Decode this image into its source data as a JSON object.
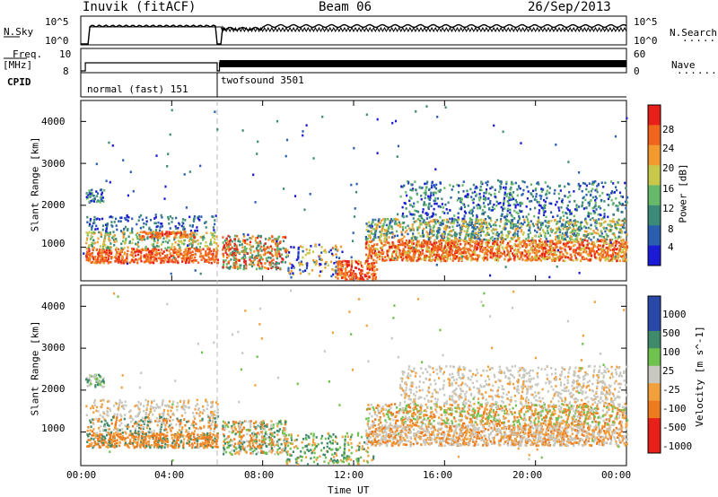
{
  "header": {
    "title_left": "Inuvik (fitACF)",
    "title_center": "Beam 06",
    "title_right": "26/Sep/2013"
  },
  "side_labels": {
    "nsky": "N.Sky",
    "freq_top": "Freq.",
    "freq_unit": "[MHz]",
    "cpid": "CPID",
    "nsearch": "N.Search",
    "nave": "Nave",
    "dots": "......."
  },
  "small_panels": {
    "nsky_ticks": [
      "10^5",
      "10^0"
    ],
    "nsearch_ticks": [
      "10^5",
      "10^0"
    ],
    "freq_ticks": [
      "10",
      "8"
    ],
    "nave_ticks": [
      "60",
      "0"
    ]
  },
  "cpid_segments": [
    {
      "label": "normal (fast) 151",
      "start_hour": 0.0,
      "end_hour": 6.0
    },
    {
      "label": "twofsound 3501",
      "start_hour": 6.0,
      "end_hour": 24.0
    }
  ],
  "colors": {
    "power_scale": [
      "#1b1bd6",
      "#2a5fb0",
      "#3c8a78",
      "#66b86a",
      "#c8c84a",
      "#f29a2e",
      "#f0641e",
      "#e8201a"
    ],
    "velocity_scale": [
      "#2948a8",
      "#3f8a6a",
      "#6fc24d",
      "#c8c8c0",
      "#f2a03c",
      "#ef7b1f",
      "#e8201a"
    ],
    "ground_scatter": "#b8b8b8"
  },
  "chart_data": [
    {
      "type": "heatmap",
      "title": "",
      "xlabel": "",
      "ylabel": "Slant Range [km]",
      "xlim_hours": [
        0,
        24
      ],
      "ylim": [
        200,
        4500
      ],
      "y_ticks": [
        "4000",
        "3000",
        "2000",
        "1000"
      ],
      "colorbar_label": "Power [dB]",
      "colorbar_ticks": [
        "28",
        "24",
        "20",
        "16",
        "12",
        "8",
        "4"
      ],
      "colorbar_range": [
        0,
        30
      ],
      "grid": false
    },
    {
      "type": "heatmap",
      "title": "",
      "xlabel": "Time UT",
      "ylabel": "Slant Range [km]",
      "xlim_hours": [
        0,
        24
      ],
      "ylim": [
        200,
        4500
      ],
      "x_ticks": [
        "00:00",
        "04:00",
        "08:00",
        "12:00",
        "16:00",
        "20:00",
        "00:00"
      ],
      "y_ticks": [
        "4000",
        "3000",
        "2000",
        "1000"
      ],
      "colorbar_label": "Velocity [m s^-1]",
      "colorbar_ticks": [
        "1000",
        "500",
        "100",
        "25",
        "-25",
        "-100",
        "-500",
        "-1000"
      ],
      "grid": false
    }
  ]
}
